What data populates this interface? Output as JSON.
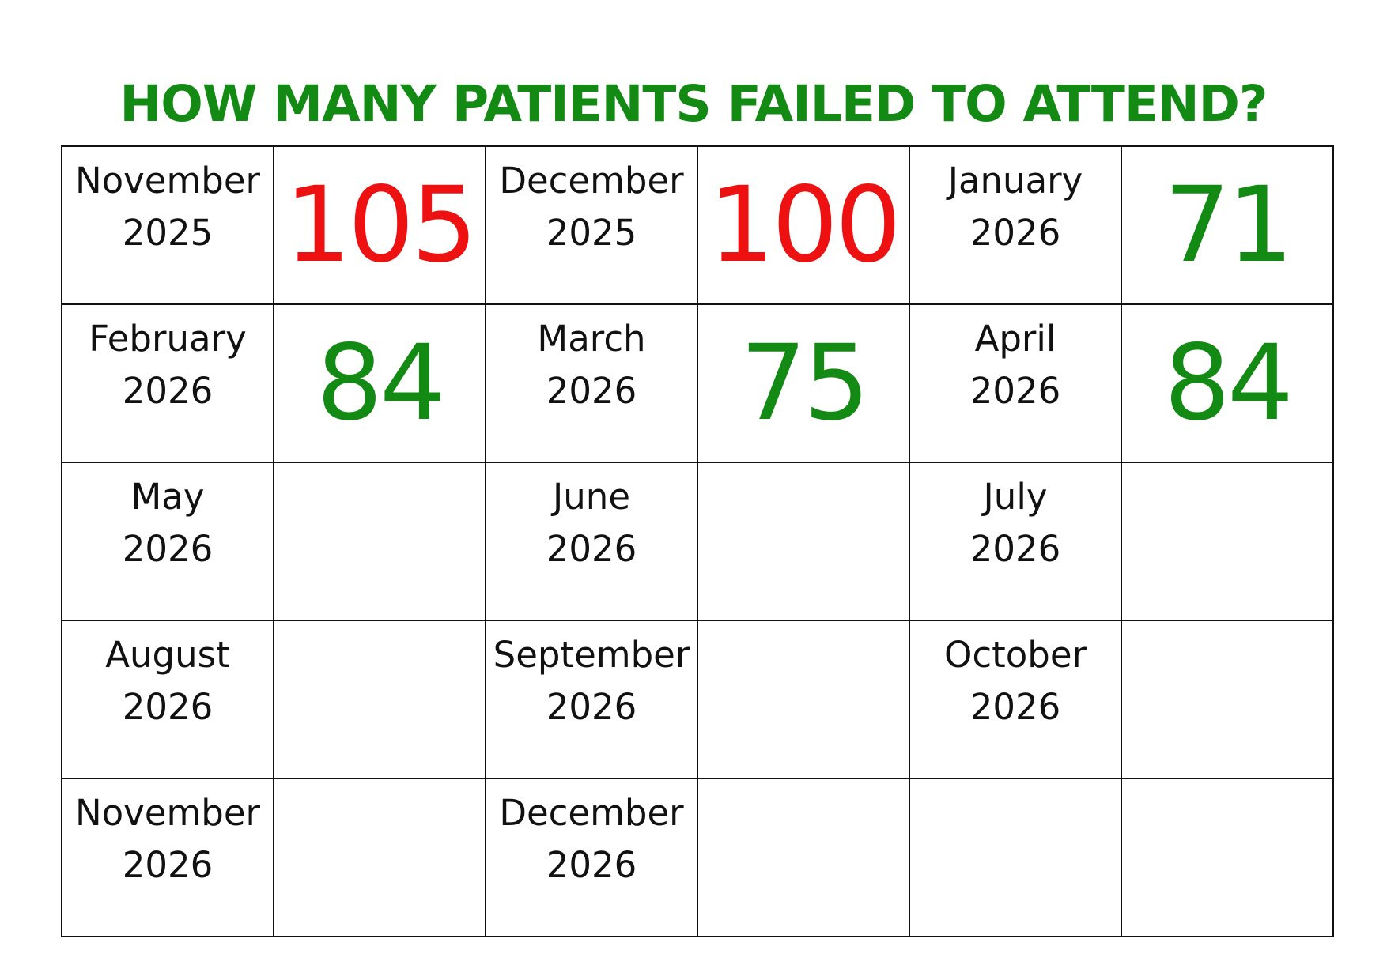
{
  "title": "HOW MANY PATIENTS FAILED TO ATTEND?",
  "colors": {
    "title": "#138a13",
    "high": "#ee1111",
    "low": "#138a13",
    "border": "#111111"
  },
  "rows": [
    [
      {
        "month": "November",
        "year": "2025",
        "value": "105",
        "status": "high"
      },
      {
        "month": "December",
        "year": "2025",
        "value": "100",
        "status": "high"
      },
      {
        "month": "January",
        "year": "2026",
        "value": "71",
        "status": "low"
      }
    ],
    [
      {
        "month": "February",
        "year": "2026",
        "value": "84",
        "status": "low"
      },
      {
        "month": "March",
        "year": "2026",
        "value": "75",
        "status": "low"
      },
      {
        "month": "April",
        "year": "2026",
        "value": "84",
        "status": "low"
      }
    ],
    [
      {
        "month": "May",
        "year": "2026",
        "value": "",
        "status": ""
      },
      {
        "month": "June",
        "year": "2026",
        "value": "",
        "status": ""
      },
      {
        "month": "July",
        "year": "2026",
        "value": "",
        "status": ""
      }
    ],
    [
      {
        "month": "August",
        "year": "2026",
        "value": "",
        "status": ""
      },
      {
        "month": "September",
        "year": "2026",
        "value": "",
        "status": ""
      },
      {
        "month": "October",
        "year": "2026",
        "value": "",
        "status": ""
      }
    ],
    [
      {
        "month": "November",
        "year": "2026",
        "value": "",
        "status": ""
      },
      {
        "month": "December",
        "year": "2026",
        "value": "",
        "status": ""
      },
      {
        "month": "",
        "year": "",
        "value": "",
        "status": ""
      }
    ]
  ]
}
